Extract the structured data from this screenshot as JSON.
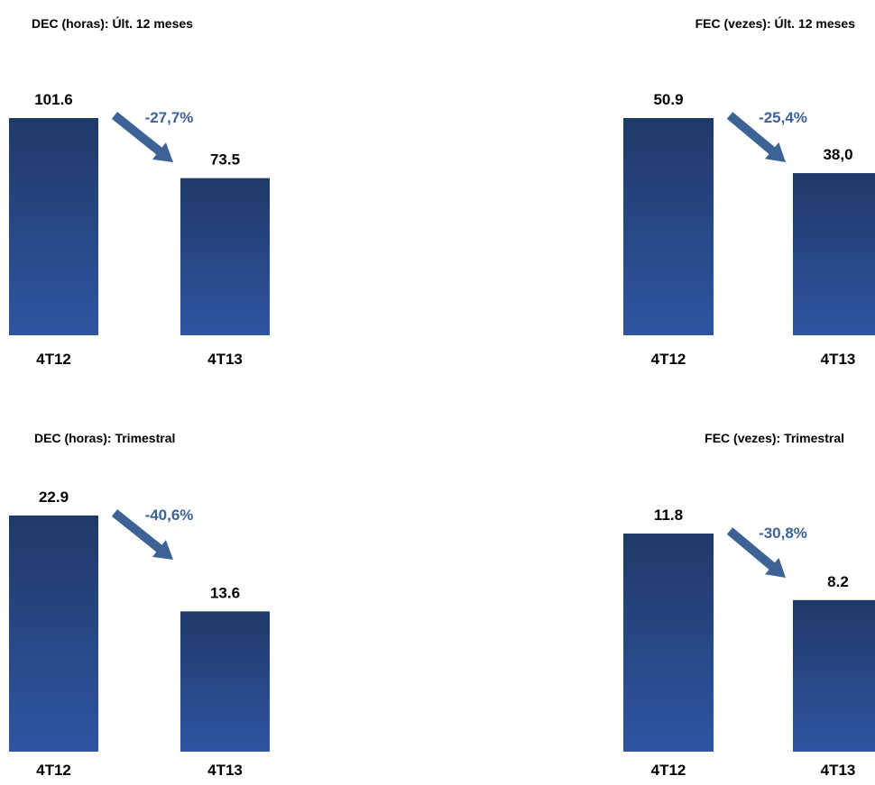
{
  "colors": {
    "bar_top": "#1f3a68",
    "bar_bottom": "#2f55a2",
    "arrow": "#3d6396",
    "text": "#000000"
  },
  "chart_data": [
    {
      "type": "bar",
      "title": "DEC (horas): Últ. 12 meses",
      "categories": [
        "4T12",
        "4T13"
      ],
      "values": [
        101.6,
        73.5
      ],
      "value_labels": [
        "101.6",
        "73.5"
      ],
      "change_label": "-27,7%"
    },
    {
      "type": "bar",
      "title": "FEC (vezes): Últ. 12 meses",
      "categories": [
        "4T12",
        "4T13"
      ],
      "values": [
        50.9,
        38.0
      ],
      "value_labels": [
        "50.9",
        "38,0"
      ],
      "change_label": "-25,4%"
    },
    {
      "type": "bar",
      "title": "DEC (horas): Trimestral",
      "categories": [
        "4T12",
        "4T13"
      ],
      "values": [
        22.9,
        13.6
      ],
      "value_labels": [
        "22.9",
        "13.6"
      ],
      "change_label": "-40,6%"
    },
    {
      "type": "bar",
      "title": "FEC (vezes): Trimestral",
      "categories": [
        "4T12",
        "4T13"
      ],
      "values": [
        11.8,
        8.2
      ],
      "value_labels": [
        "11.8",
        "8.2"
      ],
      "change_label": "-30,8%"
    }
  ]
}
